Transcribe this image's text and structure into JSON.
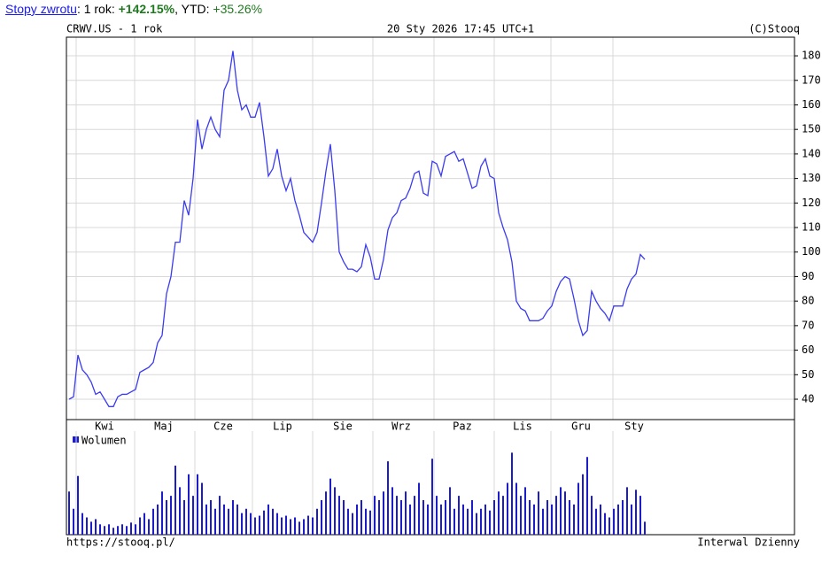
{
  "header": {
    "link": "Stopy zwrotu",
    "sep": ":",
    "period": "1 rok:",
    "period_value": "+142.15%",
    "ytd": ", YTD:",
    "ytd_value": "+35.26%"
  },
  "chart_data": {
    "type": "line",
    "title": "CRWV.US - 1 rok",
    "timestamp": "20 Sty 2026 17:45 UTC+1",
    "copyright": "(C)Stooq",
    "source": "https://stooq.pl/",
    "interval": "Interwal Dzienny",
    "color": "#3b3bf0",
    "grid": true,
    "values": [
      40,
      41,
      58,
      52,
      50,
      47,
      42,
      43,
      40,
      37,
      37,
      41,
      42,
      42,
      43,
      44,
      51,
      52,
      53,
      55,
      63,
      66,
      83,
      90,
      104,
      104,
      121,
      115,
      130,
      154,
      142,
      150,
      155,
      150,
      147,
      166,
      170,
      182,
      166,
      158,
      160,
      155,
      155,
      161,
      147,
      131,
      134,
      142,
      131,
      125,
      130,
      121,
      115,
      108,
      106,
      104,
      108,
      120,
      133,
      144,
      125,
      100,
      96,
      93,
      93,
      92,
      94,
      103,
      98,
      89,
      89,
      97,
      109,
      114,
      116,
      121,
      122,
      126,
      132,
      133,
      124,
      123,
      137,
      136,
      131,
      139,
      140,
      141,
      137,
      138,
      132,
      126,
      127,
      135,
      138,
      131,
      130,
      116,
      110,
      105,
      96,
      80,
      77,
      76,
      72,
      72,
      72,
      73,
      76,
      78,
      84,
      88,
      90,
      89,
      81,
      72,
      66,
      68,
      84,
      80,
      77,
      75,
      72,
      78,
      78,
      78,
      85,
      89,
      91,
      99,
      97
    ],
    "xlim": [
      -0.6,
      163.8
    ],
    "xticks": [
      {
        "value": 8,
        "label": "Kwi"
      },
      {
        "value": 21.4,
        "label": "Maj"
      },
      {
        "value": 34.8,
        "label": "Cze"
      },
      {
        "value": 48.2,
        "label": "Lip"
      },
      {
        "value": 61.8,
        "label": "Sie"
      },
      {
        "value": 75,
        "label": "Wrz"
      },
      {
        "value": 88.8,
        "label": "Paz"
      },
      {
        "value": 102.4,
        "label": "Lis"
      },
      {
        "value": 115.6,
        "label": "Gru"
      },
      {
        "value": 127.6,
        "label": "Sty"
      }
    ],
    "xgrid": [
      1.6,
      14.8,
      28.4,
      41.4,
      55,
      68.6,
      82.4,
      96,
      108.8,
      122.8
    ],
    "ylim": [
      31.7,
      187.6
    ],
    "yticks": [
      40,
      50,
      60,
      70,
      80,
      90,
      100,
      110,
      120,
      130,
      140,
      150,
      160,
      170,
      180
    ],
    "volume": {
      "name": "Wolumen",
      "color": "#1c1cc8",
      "ylim": [
        0,
        120
      ],
      "values": [
        50,
        30,
        68,
        25,
        20,
        15,
        18,
        12,
        10,
        12,
        8,
        10,
        12,
        10,
        14,
        12,
        20,
        25,
        18,
        30,
        35,
        50,
        40,
        45,
        80,
        55,
        40,
        70,
        45,
        70,
        60,
        35,
        40,
        30,
        45,
        35,
        30,
        40,
        35,
        25,
        30,
        25,
        20,
        22,
        28,
        35,
        30,
        25,
        20,
        22,
        18,
        20,
        15,
        18,
        22,
        20,
        30,
        40,
        50,
        65,
        55,
        45,
        40,
        30,
        25,
        35,
        40,
        30,
        28,
        45,
        40,
        50,
        85,
        55,
        45,
        40,
        50,
        35,
        45,
        60,
        40,
        35,
        88,
        45,
        35,
        40,
        55,
        30,
        45,
        35,
        30,
        40,
        25,
        30,
        35,
        28,
        40,
        50,
        45,
        60,
        95,
        60,
        45,
        55,
        40,
        35,
        50,
        30,
        40,
        35,
        45,
        55,
        50,
        40,
        35,
        60,
        70,
        90,
        45,
        30,
        35,
        25,
        20,
        30,
        35,
        40,
        55,
        35,
        52,
        45,
        15
      ]
    }
  }
}
